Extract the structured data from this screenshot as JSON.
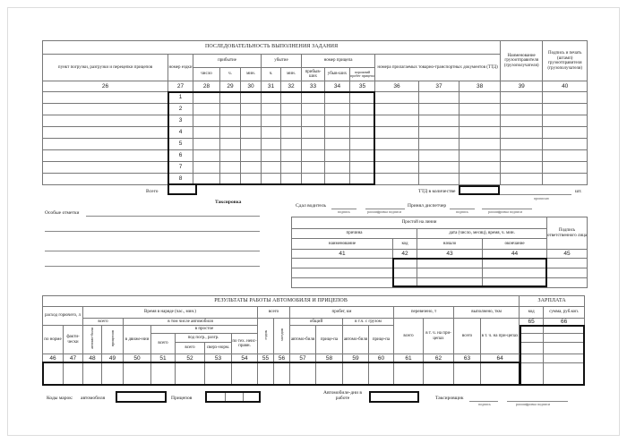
{
  "top_table": {
    "title": "ПОСЛЕДОВАТЕЛЬНОСТЬ ВЫПОЛНЕНИЯ ЗАДАНИЯ",
    "col_39": "Наименование грузоотправителя (грузополучателя)",
    "col_40": "Подпись и печать (штамп) грузоотправителя (грузополучателя)",
    "point": "пункт погрузки, разгрузки и перецепки прицепов",
    "trip_no": "номер ездки",
    "arrival": "прибытие",
    "departure": "убытие",
    "trailer_no": "номер прицепа",
    "ttd_numbers": "номера прилагаемых товарно-транспортных документов (ТТД)",
    "day": "число",
    "h": "ч.",
    "min": "мин.",
    "arriving": "прибыв-ших",
    "departing": "убыв-ших",
    "empty_run": "порожний пробег прицепа",
    "col_numbers": [
      "26",
      "27",
      "28",
      "29",
      "30",
      "31",
      "32",
      "33",
      "34",
      "35",
      "36",
      "37",
      "38",
      "39",
      "40"
    ],
    "trip_numbers": [
      "1",
      "2",
      "3",
      "4",
      "5",
      "6",
      "7",
      "8"
    ]
  },
  "mid": {
    "total_label": "Всего",
    "ttd_count_label": "ТТД в количестве",
    "in_words": "прописью",
    "pcs": "шт.",
    "taxation": "Таксировка",
    "special_notes": "Особые отметки",
    "driver_handed": "Сдал водитель",
    "dispatcher_received": "Принял диспетчер",
    "signature": "подпись",
    "signature_decoding": "расшифровка подписи"
  },
  "idle_table": {
    "title": "Простой на линии",
    "reason": "причина",
    "datetime": "дата (число, месяц), время, ч. мин.",
    "responsible_signature": "Подпись ответственного лица",
    "name": "наименование",
    "code": "код",
    "start": "начало",
    "end": "окончание",
    "col_numbers": [
      "41",
      "42",
      "43",
      "44",
      "45"
    ]
  },
  "results_table": {
    "title": "РЕЗУЛЬТАТЫ РАБОТЫ АВТОМОБИЛЯ И ПРИЦЕПОВ",
    "salary": "ЗАРПЛАТА",
    "fuel": "расход горючего, л",
    "time_in_order": "Время в наряде (час., мин.)",
    "trips_total": "всего",
    "mileage": "пробег, км",
    "transported": "перевезено, т",
    "performed": "выполнено, ткм",
    "code": "код",
    "amount": "сумма, руб.коп.",
    "by_norm": "по норме",
    "actual": "факти-чески",
    "total": "всего",
    "incl_car": "в том числе автомобиля",
    "car": "автомо-биля",
    "trailers": "прицепов",
    "in_motion": "в движе-нии",
    "idle": "в простое",
    "total2": "всего",
    "loading": "под погр., разгр.",
    "tech_fault": "по тех. неис-правн.",
    "total3": "всего",
    "excess": "сверх-норм.",
    "trips": "ездок",
    "calls": "заездов",
    "general": "общий",
    "with_cargo": "в т.ч. с грузом",
    "car2": "автомо-биля",
    "trailer": "прице-па",
    "car3": "автомо-биля",
    "trailer2": "прице-па",
    "t_total": "всего",
    "t_trailers": "в т. ч. на при-цепах",
    "p_total": "всего",
    "p_trailers": "в т. ч. на при-цепах",
    "salary_numbers": [
      "65",
      "66"
    ],
    "col_numbers": [
      "46",
      "47",
      "48",
      "49",
      "50",
      "51",
      "52",
      "53",
      "54",
      "55",
      "56",
      "57",
      "58",
      "59",
      "60",
      "61",
      "62",
      "63",
      "64"
    ]
  },
  "footer": {
    "codes_label": "Коды марок:",
    "car_label": "автомобиля",
    "trailers_label": "Прицепов",
    "car_days": "Автомобиле-дни в работе",
    "taxer": "Таксировщик",
    "signature": "подпись",
    "signature_decoding": "расшифровка подписи"
  }
}
